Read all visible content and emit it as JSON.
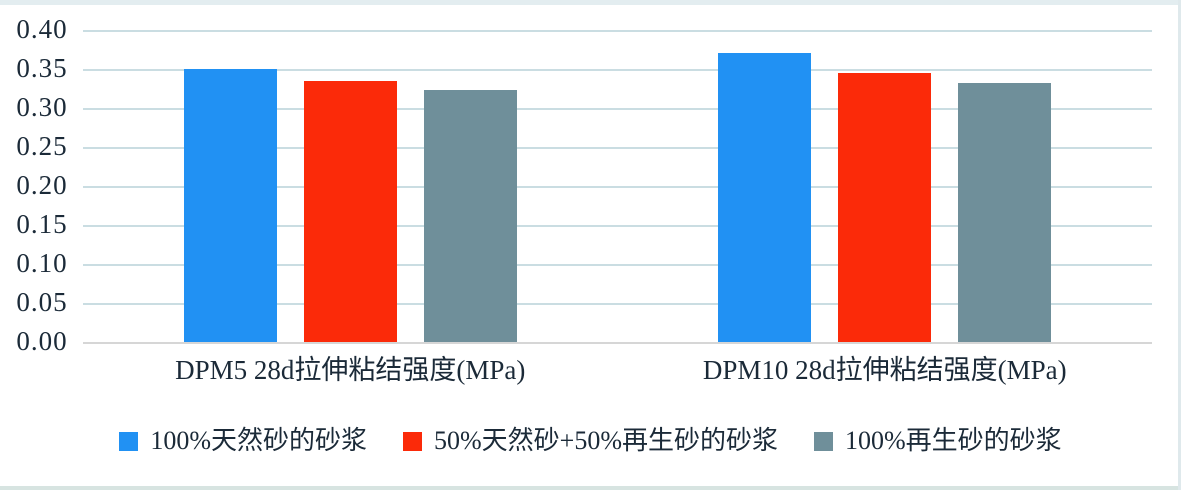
{
  "chart_data": {
    "type": "bar",
    "title": "",
    "xlabel": "",
    "ylabel": "",
    "categories": [
      "DPM5 28d拉伸粘结强度(MPa)",
      "DPM10 28d拉伸粘结强度(MPa)"
    ],
    "series": [
      {
        "name": "100%天然砂的砂浆",
        "color": "#2191f3",
        "values": [
          0.35,
          0.37
        ]
      },
      {
        "name": "50%天然砂+50%再生砂的砂浆",
        "color": "#fb2a09",
        "values": [
          0.335,
          0.345
        ]
      },
      {
        "name": "100%再生砂的砂浆",
        "color": "#6f8f9a",
        "values": [
          0.323,
          0.332
        ]
      }
    ],
    "ylim": [
      0,
      0.4
    ],
    "ytick_step": 0.05,
    "yticks": [
      "0.40",
      "0.35",
      "0.30",
      "0.25",
      "0.20",
      "0.15",
      "0.10",
      "0.05",
      "0.00"
    ],
    "grid": true,
    "grid_color": "#cadde2",
    "baseline_color": "#d6d6d6",
    "text_color": "#1b2a38",
    "legend_position": "bottom"
  }
}
